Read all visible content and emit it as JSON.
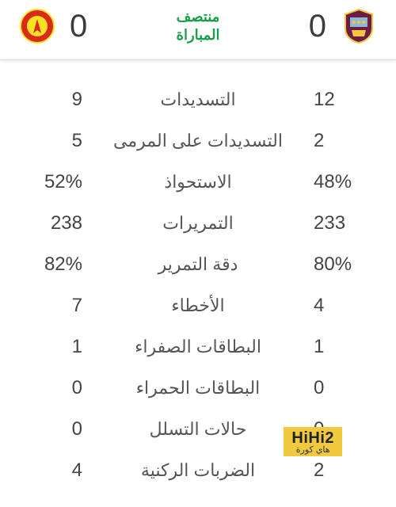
{
  "status_line1": "منتصف",
  "status_line2": "المباراة",
  "team1": {
    "name": "burnley",
    "score": "0"
  },
  "team2": {
    "name": "manchester-united",
    "score": "0"
  },
  "colors": {
    "status": "#1a9e4b",
    "text": "#444444",
    "label": "#555555",
    "border": "#e0e0e0",
    "watermark_bg": "#f0c93e",
    "burnley_claret": "#6c1d45",
    "burnley_blue": "#8fb8d8",
    "burnley_gold": "#f5c542",
    "mutd_red": "#da291c",
    "mutd_yellow": "#fbe122"
  },
  "stats": [
    {
      "label": "التسديدات",
      "t1": "9",
      "t2": "12"
    },
    {
      "label": "التسديدات على المرمى",
      "t1": "5",
      "t2": "2"
    },
    {
      "label": "الاستحواذ",
      "t1": "52%",
      "t2": "48%"
    },
    {
      "label": "التمريرات",
      "t1": "238",
      "t2": "233"
    },
    {
      "label": "دقة التمرير",
      "t1": "82%",
      "t2": "80%"
    },
    {
      "label": "الأخطاء",
      "t1": "7",
      "t2": "4"
    },
    {
      "label": "البطاقات الصفراء",
      "t1": "1",
      "t2": "1"
    },
    {
      "label": "البطاقات الحمراء",
      "t1": "0",
      "t2": "0"
    },
    {
      "label": "حالات التسلل",
      "t1": "0",
      "t2": "0"
    },
    {
      "label": "الضربات الركنية",
      "t1": "4",
      "t2": "2"
    }
  ],
  "watermark": {
    "top": "HiHi2",
    "bottom": "هاي كورة"
  }
}
